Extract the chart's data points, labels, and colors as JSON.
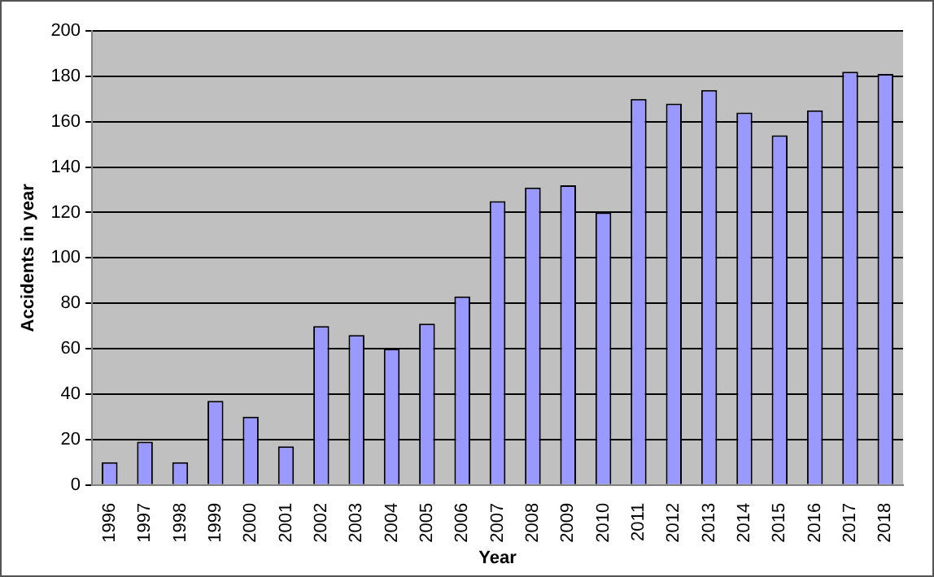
{
  "chart_data": {
    "type": "bar",
    "xlabel": "Year",
    "ylabel": "Accidents in year",
    "categories": [
      "1996",
      "1997",
      "1998",
      "1999",
      "2000",
      "2001",
      "2002",
      "2003",
      "2004",
      "2005",
      "2006",
      "2007",
      "2008",
      "2009",
      "2010",
      "2011",
      "2012",
      "2013",
      "2014",
      "2015",
      "2016",
      "2017",
      "2018"
    ],
    "values": [
      10,
      19,
      10,
      37,
      30,
      17,
      70,
      66,
      60,
      71,
      83,
      125,
      131,
      132,
      120,
      170,
      168,
      174,
      164,
      154,
      165,
      182,
      181
    ],
    "color": "#9999ff",
    "ylim": [
      0,
      200
    ],
    "yticks": [
      0,
      20,
      40,
      60,
      80,
      100,
      120,
      140,
      160,
      180,
      200
    ],
    "grid": "y"
  }
}
